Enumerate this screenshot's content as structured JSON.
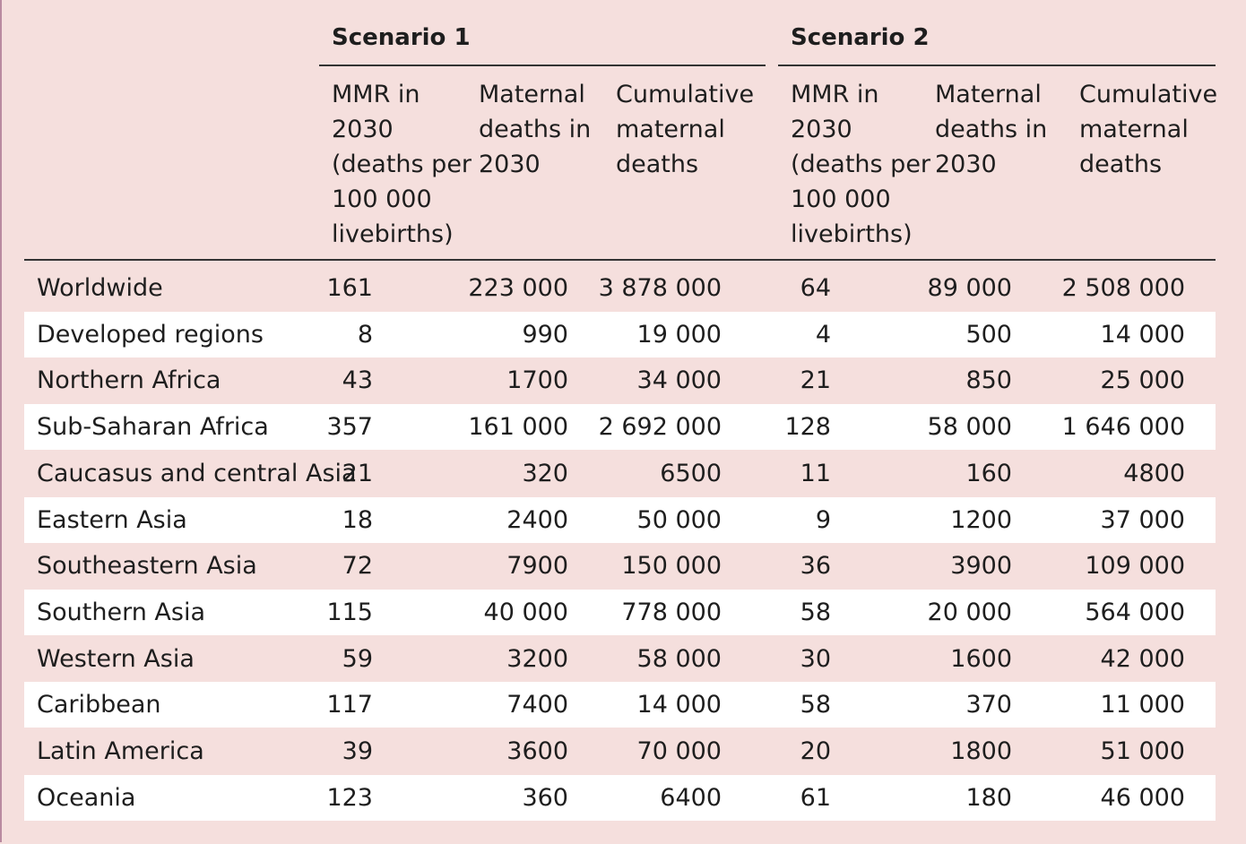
{
  "groups": [
    "Scenario 1",
    "Scenario 2"
  ],
  "column_headers": [
    "MMR in\n2030\n(deaths per\n100 000\nlivebirths)",
    "Maternal\ndeaths in\n2030",
    "Cumulative\nmaternal\ndeaths",
    "MMR in\n2030\n(deaths per\n100 000\nlivebirths)",
    "Maternal\ndeaths in\n2030",
    "Cumulative\nmaternal\ndeaths"
  ],
  "rows": [
    {
      "region": "Worldwide",
      "values": [
        "161",
        "223 000",
        "3 878 000",
        "64",
        "89 000",
        "2 508 000"
      ]
    },
    {
      "region": "Developed regions",
      "values": [
        "8",
        "990",
        "19 000",
        "4",
        "500",
        "14 000"
      ]
    },
    {
      "region": "Northern Africa",
      "values": [
        "43",
        "1700",
        "34 000",
        "21",
        "850",
        "25 000"
      ]
    },
    {
      "region": "Sub-Saharan Africa",
      "values": [
        "357",
        "161 000",
        "2 692 000",
        "128",
        "58 000",
        "1 646 000"
      ]
    },
    {
      "region": "Caucasus and central Asia",
      "values": [
        "21",
        "320",
        "6500",
        "11",
        "160",
        "4800"
      ]
    },
    {
      "region": "Eastern Asia",
      "values": [
        "18",
        "2400",
        "50 000",
        "9",
        "1200",
        "37 000"
      ]
    },
    {
      "region": "Southeastern Asia",
      "values": [
        "72",
        "7900",
        "150 000",
        "36",
        "3900",
        "109 000"
      ]
    },
    {
      "region": "Southern Asia",
      "values": [
        "115",
        "40 000",
        "778 000",
        "58",
        "20 000",
        "564 000"
      ]
    },
    {
      "region": "Western Asia",
      "values": [
        "59",
        "3200",
        "58 000",
        "30",
        "1600",
        "42 000"
      ]
    },
    {
      "region": "Caribbean",
      "values": [
        "117",
        "7400",
        "14 000",
        "58",
        "370",
        "11 000"
      ]
    },
    {
      "region": "Latin America",
      "values": [
        "39",
        "3600",
        "70 000",
        "20",
        "1800",
        "51 000"
      ]
    },
    {
      "region": "Oceania",
      "values": [
        "123",
        "360",
        "6400",
        "61",
        "180",
        "46 000"
      ]
    }
  ]
}
